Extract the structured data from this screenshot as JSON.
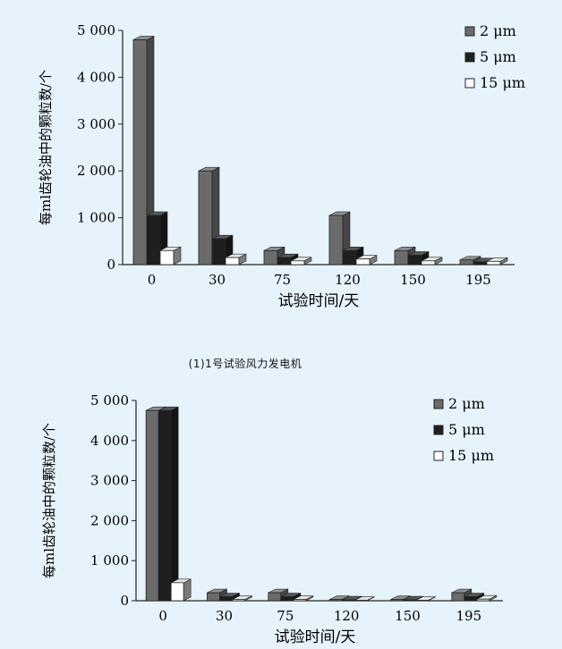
{
  "chart_data": [
    {
      "type": "bar",
      "xlabel": "试验时间/天",
      "ylabel": "每ml齿轮油中的颗粒数/个",
      "ylim": [
        0,
        5000
      ],
      "yticks": [
        0,
        1000,
        2000,
        3000,
        4000,
        5000
      ],
      "ytick_labels": [
        "0",
        "1 000",
        "2 000",
        "3 000",
        "4 000",
        "5 000"
      ],
      "categories": [
        "0",
        "30",
        "75",
        "120",
        "150",
        "195"
      ],
      "series": [
        {
          "name": "2 μm",
          "values": [
            4800,
            2000,
            300,
            1050,
            300,
            100
          ]
        },
        {
          "name": "5 μm",
          "values": [
            1050,
            550,
            150,
            300,
            200,
            60
          ]
        },
        {
          "name": "15 μm",
          "values": [
            300,
            150,
            80,
            120,
            80,
            70
          ]
        }
      ],
      "legend": "top-right",
      "style": "3d",
      "colors": [
        "#6b6b6b",
        "#1f1f1f",
        "#ffffff"
      ]
    },
    {
      "type": "bar",
      "xlabel": "试验时间/天",
      "ylabel": "每ml齿轮油中的颗粒数/个",
      "ylim": [
        0,
        5000
      ],
      "yticks": [
        0,
        1000,
        2000,
        3000,
        4000,
        5000
      ],
      "ytick_labels": [
        "0",
        "1 000",
        "2 000",
        "3 000",
        "4 000",
        "5 000"
      ],
      "categories": [
        "0",
        "30",
        "75",
        "120",
        "150",
        "195"
      ],
      "series": [
        {
          "name": "2 μm",
          "values": [
            4750,
            200,
            200,
            30,
            30,
            200
          ]
        },
        {
          "name": "5 μm",
          "values": [
            4750,
            100,
            100,
            20,
            20,
            100
          ]
        },
        {
          "name": "15 μm",
          "values": [
            450,
            30,
            30,
            10,
            10,
            40
          ]
        }
      ],
      "legend": "top-right",
      "style": "3d",
      "colors": [
        "#6b6b6b",
        "#1f1f1f",
        "#ffffff"
      ]
    }
  ],
  "caption": "(1)1号试验风力发电机"
}
